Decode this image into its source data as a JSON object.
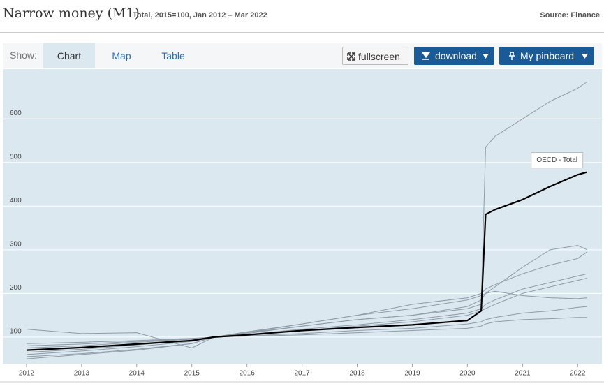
{
  "header": {
    "title": "Narrow money (M1)",
    "subtitle": "Total, 2015=100, Jan 2012 – Mar 2022",
    "source": "Source: Finance"
  },
  "toolbar": {
    "show_label": "Show:",
    "tabs": [
      "Chart",
      "Map",
      "Table"
    ],
    "active_tab": 0,
    "buttons": [
      "fullscreen",
      "download",
      "My pinboard"
    ]
  },
  "chart_data": {
    "type": "line",
    "x": [
      2012,
      2013,
      2014,
      2015,
      2015.4,
      2016,
      2017,
      2018,
      2019,
      2020,
      2020.25,
      2020.33,
      2020.5,
      2021,
      2021.5,
      2022,
      2022.17
    ],
    "xlim": [
      2011.57,
      2022.44
    ],
    "xticks": [
      2012,
      2013,
      2014,
      2015,
      2016,
      2017,
      2018,
      2019,
      2020,
      2021,
      2022
    ],
    "ylim": [
      39,
      714
    ],
    "yticks": [
      100,
      200,
      300,
      400,
      500,
      600
    ],
    "grid": true,
    "series": [
      {
        "color": "#8e9ba7",
        "values": [
          55,
          62,
          72,
          85,
          100,
          108,
          125,
          140,
          150,
          165,
          175,
          535,
          560,
          600,
          640,
          670,
          685
        ]
      },
      {
        "color": "#8e9ba7",
        "values": [
          118,
          108,
          110,
          75,
          100,
          110,
          125,
          140,
          150,
          170,
          185,
          200,
          215,
          260,
          300,
          310,
          300
        ]
      },
      {
        "color": "#8e9ba7",
        "values": [
          60,
          68,
          78,
          90,
          100,
          110,
          130,
          150,
          175,
          190,
          200,
          210,
          220,
          245,
          265,
          280,
          295
        ]
      },
      {
        "color": "#8e9ba7",
        "values": [
          75,
          80,
          88,
          95,
          100,
          105,
          115,
          125,
          135,
          150,
          160,
          165,
          175,
          200,
          215,
          230,
          235
        ]
      },
      {
        "color": "#8e9ba7",
        "values": [
          85,
          88,
          92,
          97,
          100,
          103,
          108,
          115,
          120,
          130,
          135,
          140,
          145,
          155,
          160,
          168,
          170
        ]
      },
      {
        "color": "#8e9ba7",
        "values": [
          65,
          72,
          82,
          92,
          100,
          106,
          118,
          128,
          140,
          155,
          165,
          175,
          185,
          210,
          225,
          240,
          245
        ]
      },
      {
        "color": "#8e9ba7",
        "values": [
          80,
          84,
          90,
          96,
          100,
          102,
          105,
          110,
          115,
          120,
          125,
          130,
          135,
          140,
          142,
          145,
          145
        ]
      },
      {
        "color": "#8e9ba7",
        "values": [
          50,
          60,
          70,
          85,
          100,
          112,
          130,
          150,
          165,
          185,
          195,
          200,
          205,
          195,
          190,
          188,
          190
        ]
      },
      {
        "name": "OECD - Total",
        "color": "#000000",
        "values": [
          70,
          76,
          84,
          92,
          100,
          105,
          115,
          122,
          128,
          138,
          160,
          381,
          392,
          415,
          445,
          472,
          478
        ]
      }
    ]
  }
}
